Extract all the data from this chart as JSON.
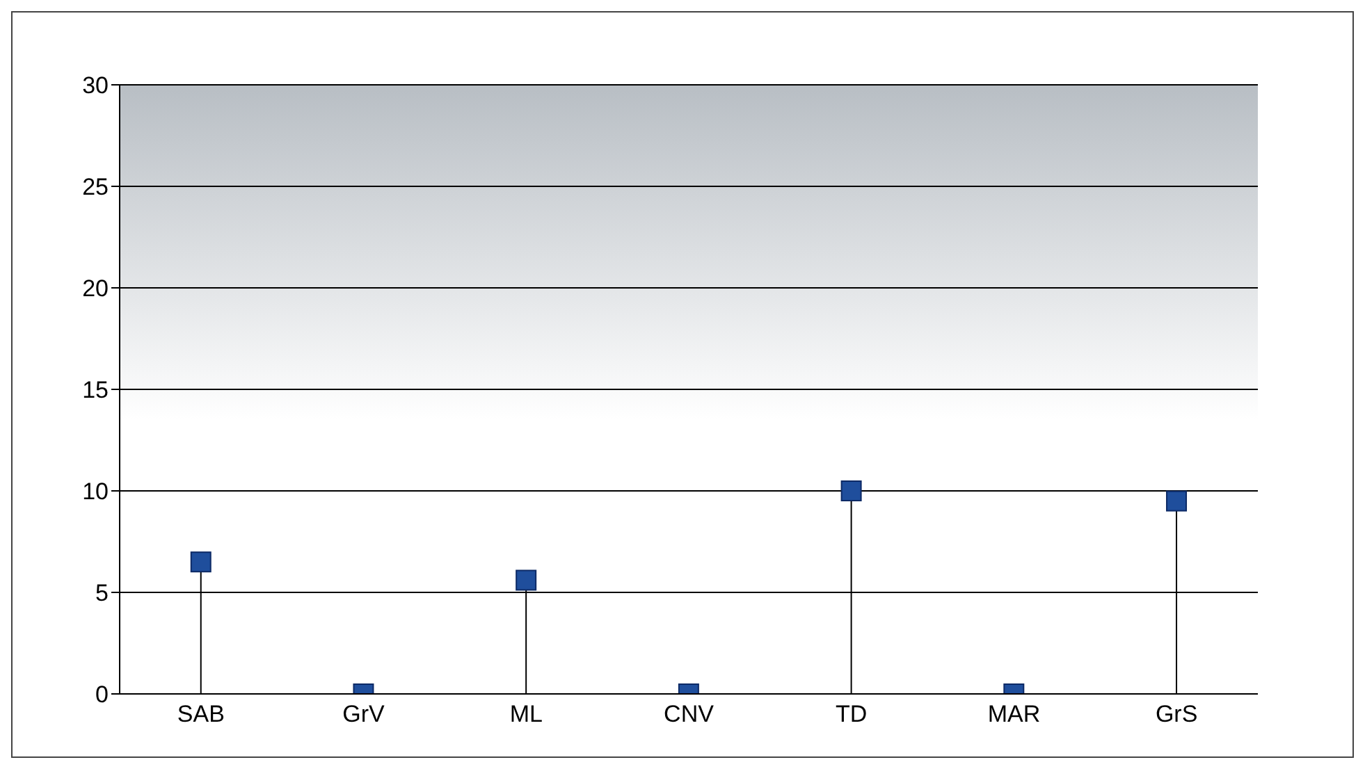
{
  "chart_data": {
    "type": "lollipop",
    "categories": [
      "SAB",
      "GrV",
      "ML",
      "CNV",
      "TD",
      "MAR",
      "GrS"
    ],
    "values": [
      6.5,
      0,
      5.6,
      0,
      10,
      0,
      9.5
    ],
    "color": "#1f4e9c",
    "ylim": [
      0,
      30
    ],
    "yticks": [
      0,
      5,
      10,
      15,
      20,
      25,
      30
    ],
    "grid": "y",
    "marker": "square"
  }
}
